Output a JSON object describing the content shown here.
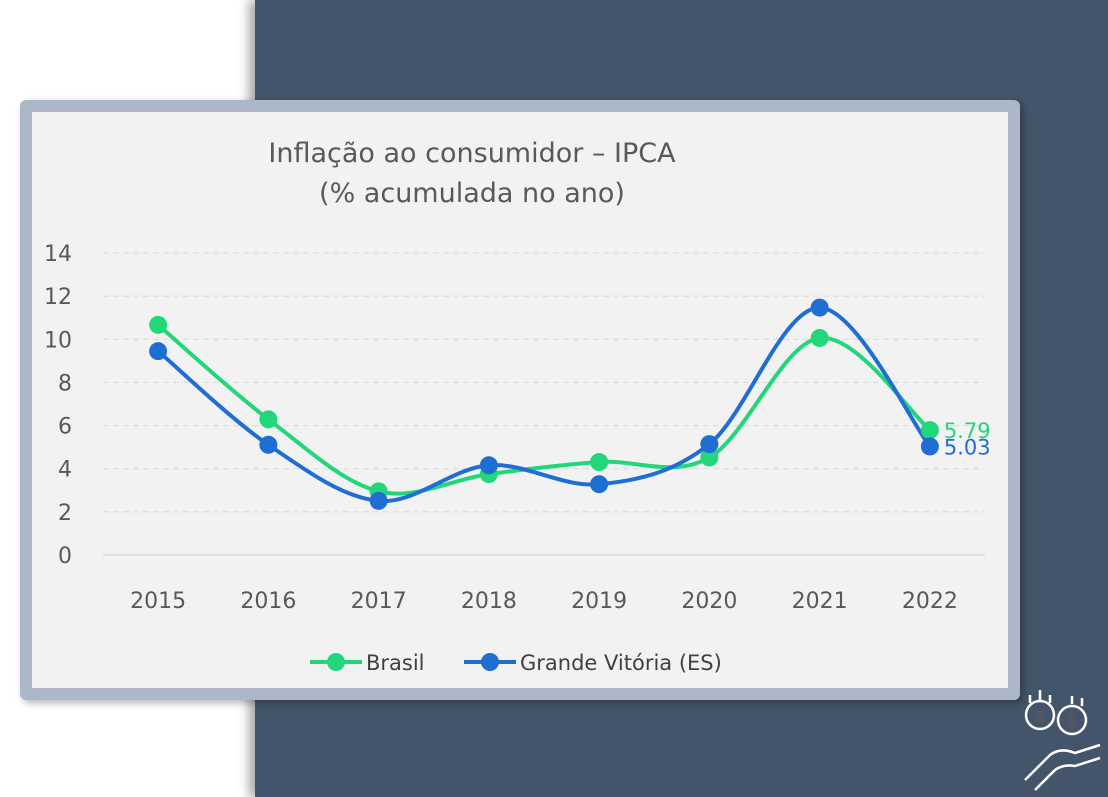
{
  "chart_data": {
    "type": "line",
    "title": "Inflação ao consumidor – IPCA",
    "subtitle": "(% acumulada no ano)",
    "categories": [
      "2015",
      "2016",
      "2017",
      "2018",
      "2019",
      "2020",
      "2021",
      "2022"
    ],
    "series": [
      {
        "name": "Brasil",
        "color": "#22d67a",
        "values": [
          10.67,
          6.29,
          2.95,
          3.75,
          4.31,
          4.52,
          10.06,
          5.79
        ]
      },
      {
        "name": "Grande Vitória (ES)",
        "color": "#1f6ed4",
        "values": [
          9.45,
          5.11,
          2.51,
          4.16,
          3.28,
          5.14,
          11.47,
          5.03
        ]
      }
    ],
    "ylim": [
      0,
      14
    ],
    "yticks": [
      0,
      2,
      4,
      6,
      8,
      10,
      12,
      14
    ],
    "grid": true,
    "smooth": true,
    "legend": "bottom"
  }
}
